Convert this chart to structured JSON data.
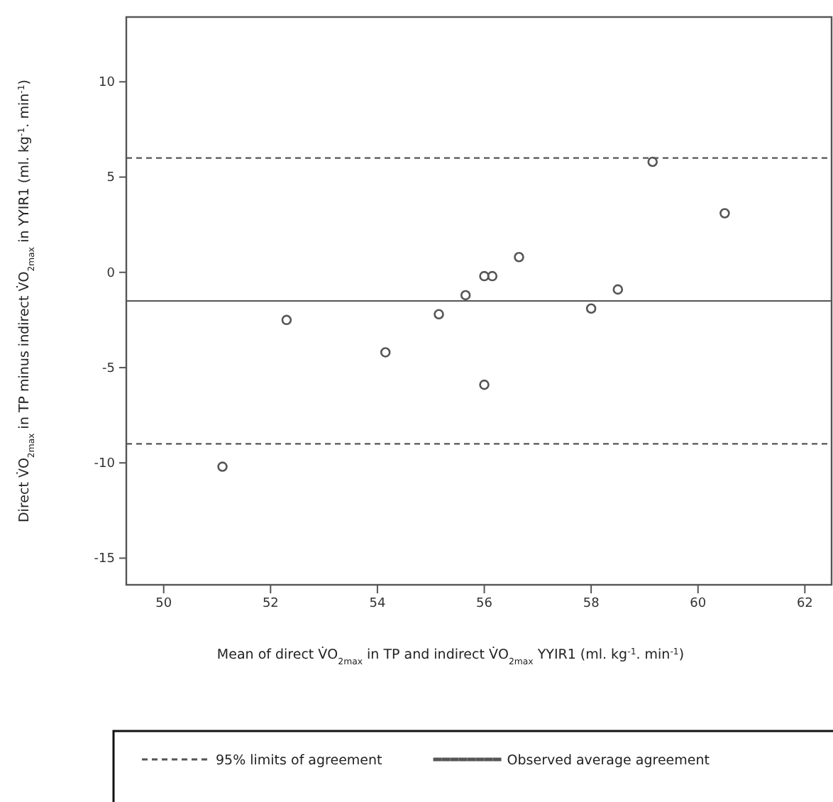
{
  "chart_data": {
    "type": "scatter",
    "xlabel": "Mean of direct V̇O$_{2max}$ in TP and indirect V̇O$_{2max}$ YYIR1 (ml. kg$^{-1}$. min$^{-1}$)",
    "ylabel": "Direct V̇O$_{2max}$ in TP minus indirect V̇O$_{2max}$ in YYIR1 (ml. kg$^{-1}$. min$^{-1}$)",
    "x": [
      51.1,
      52.3,
      54.15,
      55.15,
      55.65,
      56.0,
      56.15,
      56.65,
      56.0,
      58.0,
      58.5,
      59.15,
      60.5
    ],
    "series": [
      {
        "color": "#555555",
        "values": [
          -10.2,
          -2.5,
          -4.2,
          -2.2,
          -1.2,
          -0.2,
          -0.2,
          0.8,
          -5.9,
          -1.9,
          -0.9,
          5.8,
          3.1
        ]
      }
    ],
    "marker": "circle",
    "xlim": [
      49.3,
      62.5
    ],
    "xticks": [
      50,
      52,
      54,
      56,
      58,
      60,
      62
    ],
    "ylim": [
      -16.4,
      13.4
    ],
    "yticks": [
      -15,
      -10,
      -5,
      0,
      5,
      10
    ],
    "ref_lines": [
      {
        "axis": "y",
        "value": 6.0,
        "label": "95% limits of agreement",
        "line_style": "dashed",
        "color": "#555555"
      },
      {
        "axis": "y",
        "value": -1.5,
        "label": "Observed average agreement",
        "line_style": "solid",
        "color": "#555555"
      },
      {
        "axis": "y",
        "value": -9.0,
        "line_style": "dashed",
        "color": "#555555"
      }
    ],
    "legend": "bottom",
    "grid": false
  }
}
